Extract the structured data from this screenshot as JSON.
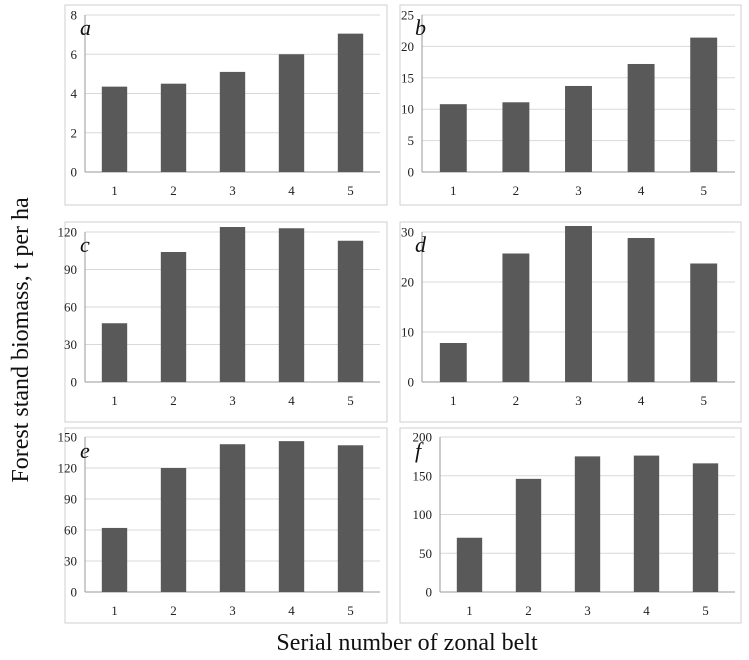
{
  "figure": {
    "ylabel": "Forest stand biomass, t per ha",
    "xlabel": "Serial number of zonal belt",
    "colors": {
      "bar": "#595959",
      "grid": "#d9d9d9",
      "axis": "#9a9a9a"
    }
  },
  "chart_data": [
    {
      "type": "bar",
      "panel": "a",
      "categories": [
        "1",
        "2",
        "3",
        "4",
        "5"
      ],
      "values": [
        4.35,
        4.5,
        5.1,
        6.0,
        7.05
      ],
      "yticks": [
        0,
        2,
        4,
        6,
        8
      ],
      "ylim": [
        0,
        8
      ],
      "grid": true
    },
    {
      "type": "bar",
      "panel": "b",
      "categories": [
        "1",
        "2",
        "3",
        "4",
        "5"
      ],
      "values": [
        10.8,
        11.1,
        13.7,
        17.2,
        21.4
      ],
      "yticks": [
        0,
        5,
        10,
        15,
        20,
        25
      ],
      "ylim": [
        0,
        25
      ],
      "grid": true
    },
    {
      "type": "bar",
      "panel": "c",
      "categories": [
        "1",
        "2",
        "3",
        "4",
        "5"
      ],
      "values": [
        47,
        104,
        124,
        123,
        113
      ],
      "yticks": [
        0,
        30,
        60,
        90,
        120
      ],
      "ylim": [
        0,
        120
      ],
      "grid": true
    },
    {
      "type": "bar",
      "panel": "d",
      "categories": [
        "1",
        "2",
        "3",
        "4",
        "5"
      ],
      "values": [
        7.8,
        25.7,
        31.2,
        28.8,
        23.7
      ],
      "yticks": [
        0,
        10,
        20,
        30
      ],
      "ylim": [
        0,
        30
      ],
      "grid": true
    },
    {
      "type": "bar",
      "panel": "e",
      "categories": [
        "1",
        "2",
        "3",
        "4",
        "5"
      ],
      "values": [
        62,
        120,
        143,
        146,
        142
      ],
      "yticks": [
        0,
        30,
        60,
        90,
        120,
        150
      ],
      "ylim": [
        0,
        150
      ],
      "grid": true
    },
    {
      "type": "bar",
      "panel": "f",
      "categories": [
        "1",
        "2",
        "3",
        "4",
        "5"
      ],
      "values": [
        70,
        146,
        175,
        176,
        166
      ],
      "yticks": [
        0,
        50,
        100,
        150,
        200
      ],
      "ylim": [
        0,
        200
      ],
      "grid": true
    }
  ]
}
